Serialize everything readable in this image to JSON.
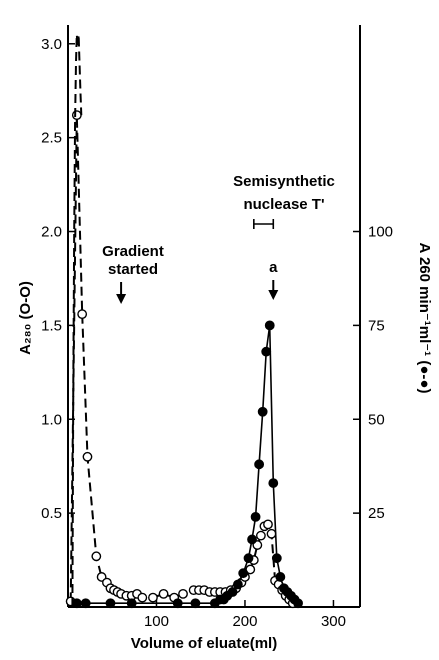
{
  "chart_data": {
    "type": "line",
    "xlabel": "Volume of eluate(ml)",
    "ylabel_left": "A₂₈₀ (O-O)",
    "ylabel_right": "A 260 min⁻¹ml⁻¹ (●-●)",
    "xlim": [
      0,
      330
    ],
    "ylim_left": [
      0,
      3.1
    ],
    "ylim_right": [
      0,
      155
    ],
    "x_ticks": [
      100,
      200,
      300
    ],
    "y_ticks_left": [
      0.5,
      1.0,
      1.5,
      2.0,
      2.5,
      3.0
    ],
    "y_tick_labels_left": [
      "0.5",
      "1.0",
      "1.5",
      "2.0",
      "2.5",
      "3.0"
    ],
    "y_ticks_right": [
      25,
      50,
      75,
      100
    ],
    "y_tick_labels_right": [
      "25",
      "50",
      "75",
      "100"
    ],
    "grid": false,
    "series": [
      {
        "axis": "left",
        "marker": "open-circle",
        "line_style": "dashed",
        "x": [
          3,
          10,
          16,
          22,
          32,
          38,
          44,
          48,
          52,
          56,
          60,
          66,
          72,
          78,
          84,
          96,
          108,
          120,
          130,
          142,
          148,
          154,
          160,
          166,
          172,
          178,
          184,
          190,
          196,
          200,
          206,
          210,
          214,
          218,
          222,
          226,
          230,
          234,
          238,
          242,
          246,
          250,
          254
        ],
        "values": [
          0.03,
          2.62,
          1.56,
          0.8,
          0.27,
          0.16,
          0.13,
          0.1,
          0.09,
          0.08,
          0.07,
          0.06,
          0.06,
          0.07,
          0.05,
          0.05,
          0.07,
          0.05,
          0.07,
          0.09,
          0.09,
          0.09,
          0.08,
          0.08,
          0.08,
          0.08,
          0.09,
          0.1,
          0.13,
          0.16,
          0.2,
          0.25,
          0.33,
          0.38,
          0.43,
          0.44,
          0.39,
          0.14,
          0.12,
          0.09,
          0.06,
          0.04,
          0.02
        ]
      },
      {
        "axis": "right",
        "marker": "filled-circle",
        "line_style": "solid",
        "x": [
          10,
          20,
          48,
          72,
          124,
          144,
          166,
          172,
          176,
          180,
          186,
          192,
          198,
          204,
          208,
          212,
          216,
          220,
          224,
          228,
          232,
          236,
          240,
          244,
          248,
          252,
          256,
          260
        ],
        "values": [
          1,
          1,
          1,
          1,
          1,
          1,
          1,
          2,
          2,
          3,
          4,
          6,
          9,
          13,
          18,
          24,
          38,
          52,
          68,
          75,
          33,
          13,
          8,
          5,
          4,
          3,
          2,
          1
        ]
      },
      {
        "axis": "left",
        "marker": "none",
        "line_style": "dashed",
        "x": [
          5,
          6,
          7,
          8,
          9,
          10,
          11,
          12,
          13,
          14,
          15
        ],
        "values": [
          0.0,
          1.2,
          2.0,
          2.6,
          2.9,
          3.05,
          2.98,
          3.05,
          2.9,
          2.75,
          2.62
        ]
      }
    ],
    "annotations": [
      {
        "text": "Gradient",
        "text2": "started",
        "x": 60,
        "arrow": true
      },
      {
        "text": "Semisynthetic",
        "text2": "nuclease T'",
        "x": 220,
        "bracket": [
          210,
          232
        ]
      },
      {
        "text": "a",
        "x": 232,
        "arrow": true
      }
    ]
  }
}
